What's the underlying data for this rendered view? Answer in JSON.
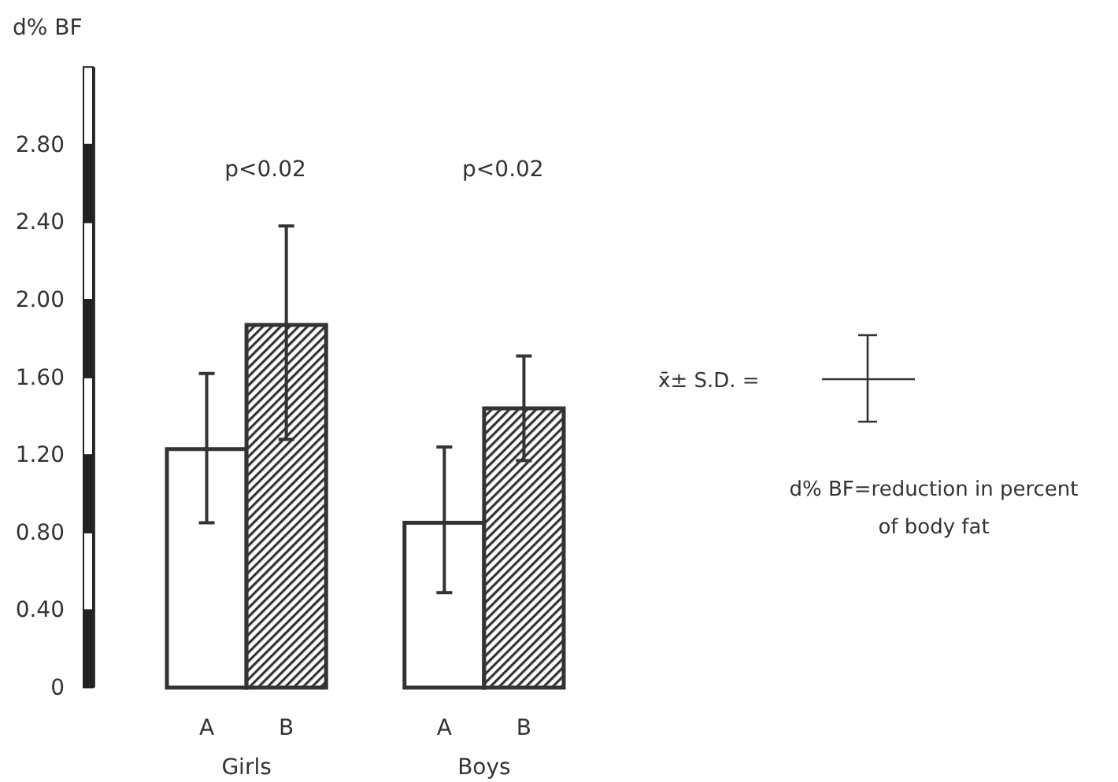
{
  "chart_data": {
    "type": "bar",
    "ylabel": "d% BF",
    "categories": [
      "Girls",
      "Boys"
    ],
    "series": [
      {
        "name": "A",
        "color": "#ffffff",
        "values": [
          1.23,
          0.85
        ],
        "errors": [
          [
            0.85,
            1.62
          ],
          [
            0.49,
            1.24
          ]
        ]
      },
      {
        "name": "B",
        "color": "#333333",
        "values": [
          1.87,
          1.44
        ],
        "errors": [
          [
            1.28,
            2.38
          ],
          [
            1.17,
            1.71
          ]
        ]
      }
    ],
    "ylim": [
      0,
      3.2
    ],
    "yticks": [
      {
        "value": 0,
        "label": "0"
      },
      {
        "value": 0.4,
        "label": "0.40"
      },
      {
        "value": 0.8,
        "label": "0.80"
      },
      {
        "value": 1.2,
        "label": "1.20"
      },
      {
        "value": 1.6,
        "label": "1.60"
      },
      {
        "value": 2.0,
        "label": "2.00"
      },
      {
        "value": 2.4,
        "label": "2.40"
      },
      {
        "value": 2.8,
        "label": "2.80"
      }
    ],
    "annotations": [
      "p<0.02",
      "p<0.02",
      "x̄± S.D. =",
      "d% BF=reduction in percent of body fat"
    ],
    "legend": false,
    "grid": false
  }
}
